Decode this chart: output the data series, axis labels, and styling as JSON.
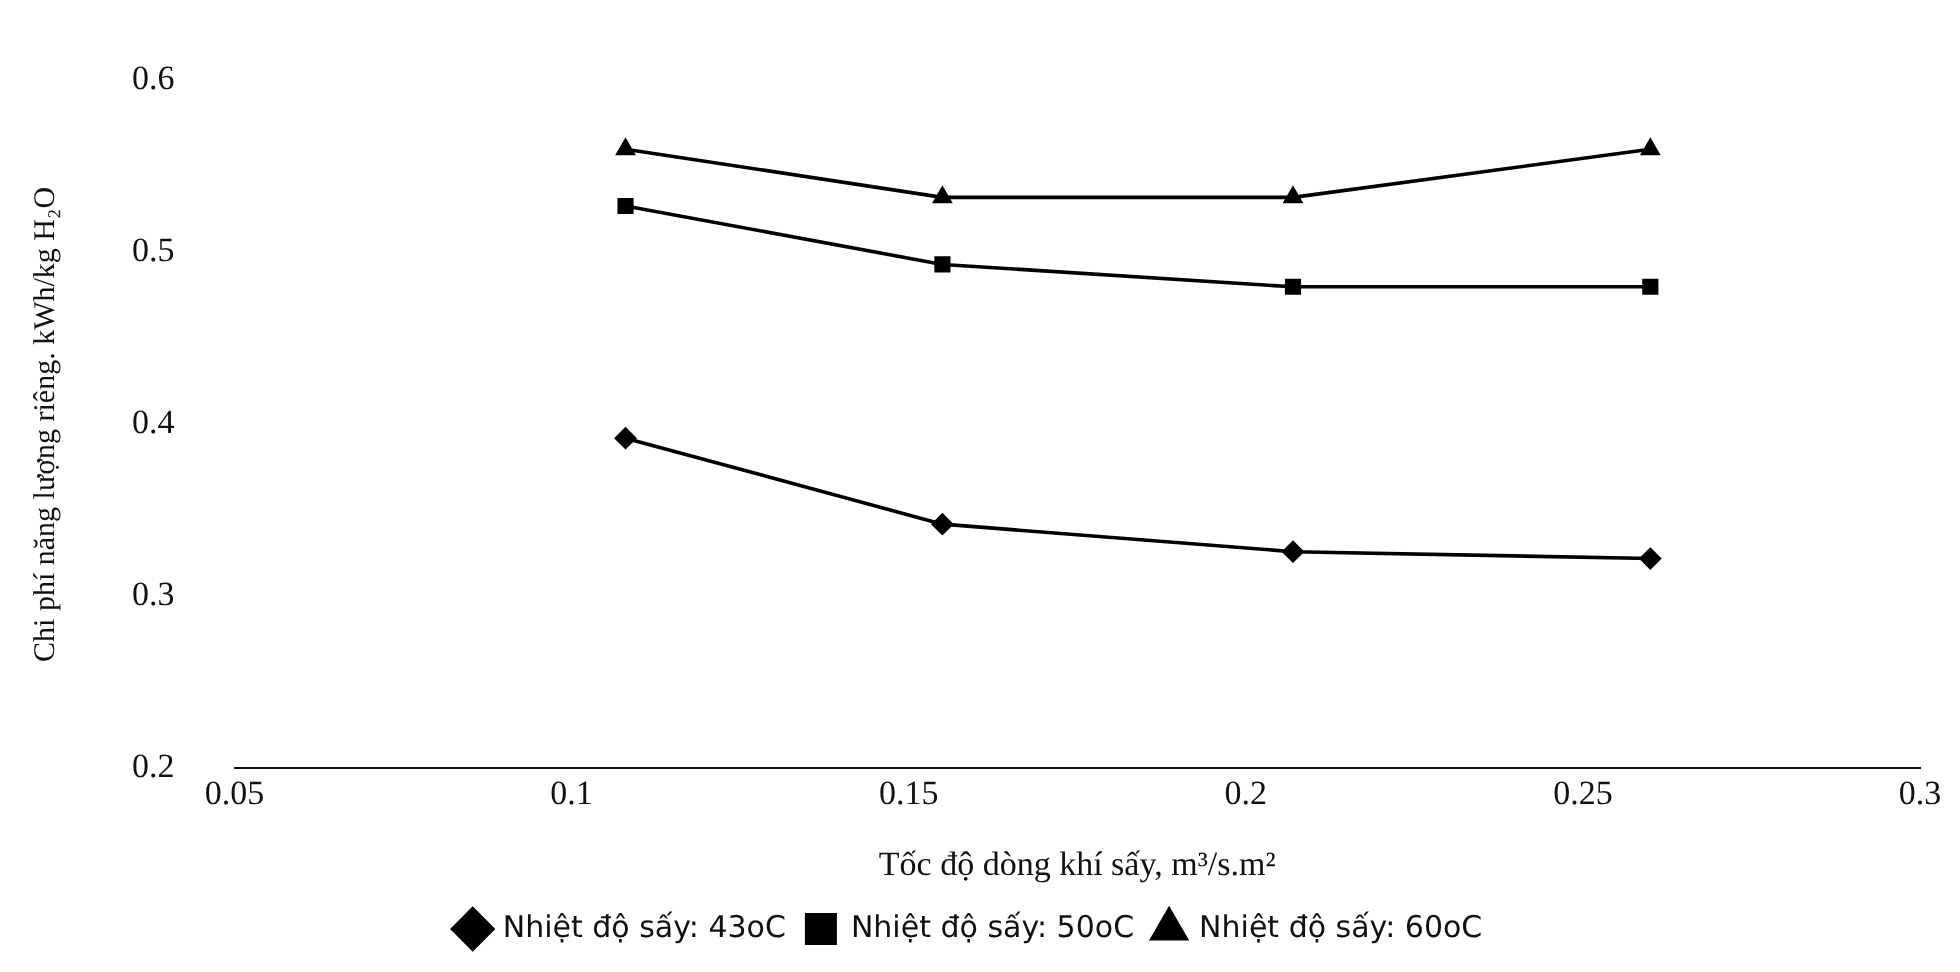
{
  "chart_data": {
    "type": "line",
    "xlabel": "Tốc độ dòng khí sấy, m³/s.m²",
    "ylabel": "Chi phí năng lượng riêng. kWh/kg H₂O",
    "x": [
      0.108,
      0.155,
      0.207,
      0.26
    ],
    "series": [
      {
        "name": "Nhiệt độ sấy: 43oC",
        "color": "#000000",
        "marker": "diamond",
        "values": [
          0.392,
          0.342,
          0.326,
          0.322
        ]
      },
      {
        "name": "Nhiệt độ sấy: 50oC",
        "color": "#000000",
        "marker": "square",
        "values": [
          0.527,
          0.493,
          0.48,
          0.48
        ]
      },
      {
        "name": "Nhiệt độ sấy: 60oC",
        "color": "#000000",
        "marker": "triangle",
        "values": [
          0.56,
          0.532,
          0.532,
          0.56
        ]
      }
    ],
    "xlim": [
      0.05,
      0.3
    ],
    "xticks": [
      0.05,
      0.1,
      0.15,
      0.2,
      0.25,
      0.3
    ],
    "ylim": [
      0.2,
      0.6
    ],
    "yticks": [
      0.2,
      0.3,
      0.4,
      0.5,
      0.6
    ],
    "grid": false,
    "legend": "bottom",
    "line_style": "solid"
  }
}
